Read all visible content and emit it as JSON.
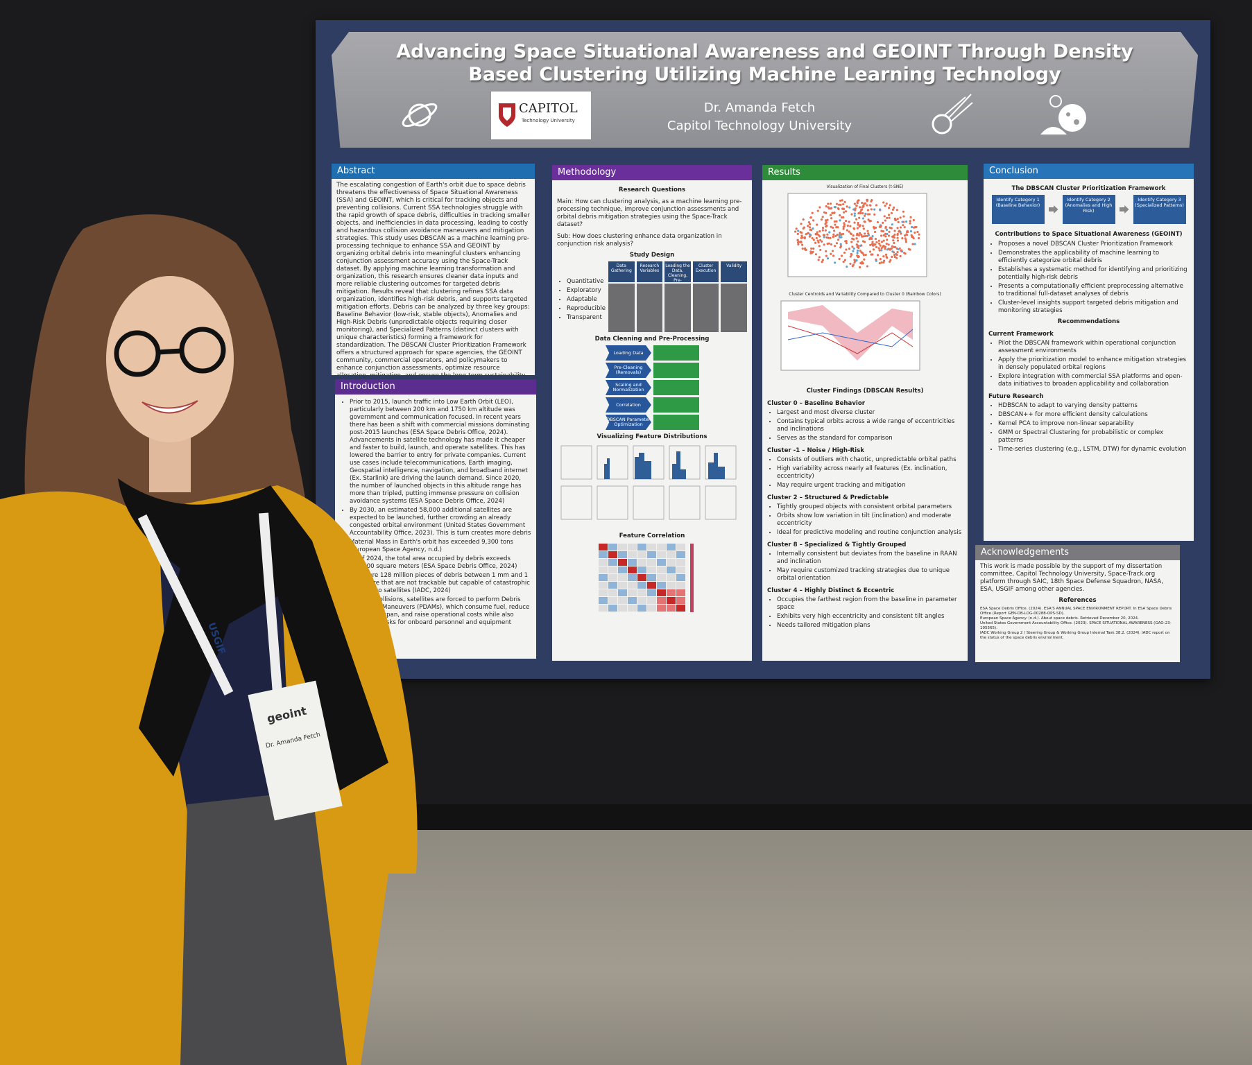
{
  "poster": {
    "title": "Advancing Space Situational Awareness and GEOINT Through Density Based Clustering Utilizing Machine Learning Technology",
    "author": "Dr. Amanda Fetch",
    "affiliation": "Capitol Technology University",
    "logo": {
      "name": "CAPITOL",
      "sub": "Technology University"
    },
    "abstract": {
      "heading": "Abstract",
      "text": "The escalating congestion of Earth's orbit due to space debris threatens the effectiveness of Space Situational Awareness (SSA) and GEOINT, which is critical for tracking objects and preventing collisions. Current SSA technologies struggle with the rapid growth of space debris, difficulties in tracking smaller objects, and inefficiencies in data processing, leading to costly and hazardous collision avoidance maneuvers and mitigation strategies. This study uses DBSCAN as a machine learning pre-processing technique to enhance SSA and GEOINT by organizing orbital debris into meaningful clusters enhancing conjunction assessment accuracy using the Space-Track dataset. By applying machine learning transformation and organization, this research ensures cleaner data inputs and more reliable clustering outcomes for targeted debris mitigation. Results reveal that clustering refines SSA data organization, identifies high-risk debris, and supports targeted mitigation efforts. Debris can be analyzed by three key groups: Baseline Behavior (low-risk, stable objects), Anomalies and High-Risk Debris (unpredictable objects requiring closer monitoring), and Specialized Patterns (distinct clusters with unique characteristics) forming a framework for standardization. The DBSCAN Cluster Prioritization Framework offers a structured approach for space agencies, the GEOINT community, commercial operators, and policymakers to enhance conjunction assessments, optimize resource allocation, mitigation, and ensure the long-term sustainability of Earth's orbital environment."
    },
    "introduction": {
      "heading": "Introduction",
      "items": [
        "Prior to 2015, launch traffic into Low Earth Orbit (LEO), particularly between 200 km and 1750 km altitude was government and communication focused. In recent years there has been a shift with commercial missions dominating post-2015 launches (ESA Space Debris Office, 2024). Advancements in satellite technology has made it cheaper and faster to build, launch, and operate satellites. This has lowered the barrier to entry for private companies. Current use cases include telecommunications, Earth imaging, Geospatial intelligence, navigation, and broadband internet (Ex. Starlink) are driving the launch demand. Since 2020, the number of launched objects in this altitude range has more than tripled, putting immense pressure on collision avoidance systems (ESA Space Debris Office, 2024)",
        "By 2030, an estimated 58,000 additional satellites are expected to be launched, further crowding an already congested orbital environment (United States Government Accountability Office, 2023). This is turn creates more debris",
        "Material Mass in Earth's orbit has exceeded 9,300 tons (European Space Agency, n.d.)",
        "As of 2024, the total area occupied by debris exceeds 100,000 square meters (ESA Space Debris Office, 2024)",
        "There are 128 million pieces of debris between 1 mm and 1 cm in size that are not trackable but capable of catastrophic damage to satellites (IADC, 2024)",
        "To avoid collisions, satellites are forced to perform Debris Avoidance Maneuvers (PDAMs), which consume fuel, reduce mission lifespan, and raise operational costs while also increasing risks for onboard personnel and equipment"
      ]
    },
    "methodology": {
      "heading": "Methodology",
      "questions_title": "Research Questions",
      "main": "Main: How can clustering analysis, as a machine learning pre-processing technique, improve conjunction assessments and orbital debris mitigation strategies using the Space-Track dataset?",
      "sub": "Sub: How does clustering enhance data organization in conjunction risk analysis?",
      "design_title": "Study Design",
      "design_items": [
        "Quantitative",
        "Exploratory",
        "Adaptable",
        "Reproducible",
        "Transparent"
      ],
      "table_headers": [
        "Data Gathering",
        "Research Variables",
        "Leading the Data, Cleaning, Pre-Processing",
        "Cluster Execution",
        "Validity"
      ],
      "cleaning_title": "Data Cleaning and Pre-Processing",
      "steps": [
        "Loading Data",
        "Pre-Cleaning (Removals)",
        "Scaling and Normalization",
        "Correlation",
        "DBSCAN Parameter Optimization"
      ],
      "distributions_title": "Visualizing Feature Distributions",
      "correlation_title": "Feature Correlation"
    },
    "results": {
      "heading": "Results",
      "plot1_title": "Visualization of Final Clusters (t-SNE)",
      "plot2_title": "Cluster Centroids and Variability Compared to Cluster 0 (Rainbow Colors)",
      "findings_title": "Cluster Findings (DBSCAN Results)",
      "clusters": [
        {
          "name": "Cluster 0 – Baseline Behavior",
          "items": [
            "Largest and most diverse cluster",
            "Contains typical orbits across a wide range of eccentricities and inclinations",
            "Serves as the standard for comparison"
          ]
        },
        {
          "name": "Cluster -1 – Noise / High-Risk",
          "items": [
            "Consists of outliers with chaotic, unpredictable orbital paths",
            "High variability across nearly all features (Ex. inclination, eccentricity)",
            "May require urgent tracking and mitigation"
          ]
        },
        {
          "name": "Cluster 2 – Structured & Predictable",
          "items": [
            "Tightly grouped objects with consistent orbital parameters",
            "Orbits show low variation in tilt (inclination) and moderate eccentricity",
            "Ideal for predictive modeling and routine conjunction analysis"
          ]
        },
        {
          "name": "Cluster 8 – Specialized & Tightly Grouped",
          "items": [
            "Internally consistent but deviates from the baseline in RAAN and inclination",
            "May require customized tracking strategies due to unique orbital orientation"
          ]
        },
        {
          "name": "Cluster 4 – Highly Distinct & Eccentric",
          "items": [
            "Occupies the farthest region from the baseline in parameter space",
            "Exhibits very high eccentricity and consistent tilt angles",
            "Needs tailored mitigation plans"
          ]
        }
      ]
    },
    "conclusion": {
      "heading": "Conclusion",
      "framework_title": "The DBSCAN Cluster Prioritization Framework",
      "framework_boxes": [
        "Identify Category 1 (Baseline Behavior)",
        "Identify Category 2 (Anomalies and High Risk)",
        "Identify Category 3 (Specialized Patterns)"
      ],
      "contrib_title": "Contributions to Space Situational Awareness (GEOINT)",
      "contributions": [
        "Proposes a novel DBSCAN Cluster Prioritization Framework",
        "Demonstrates the applicability of machine learning to efficiently categorize orbital debris",
        "Establishes a systematic method for identifying and prioritizing potentially high-risk debris",
        "Presents a computationally efficient preprocessing alternative to traditional full-dataset analyses of debris",
        "Cluster-level insights support targeted debris mitigation and monitoring strategies"
      ],
      "rec_title": "Recommendations",
      "current_title": "Current Framework",
      "current": [
        "Pilot the DBSCAN framework within operational conjunction assessment environments",
        "Apply the prioritization model to enhance mitigation strategies in densely populated orbital regions",
        "Explore integration with commercial SSA platforms and open-data initiatives to broaden applicability and collaboration"
      ],
      "future_title": "Future Research",
      "future": [
        "HDBSCAN to adapt to varying density patterns",
        "DBSCAN++ for more efficient density calculations",
        "Kernel PCA to improve non-linear separability",
        "GMM or Spectral Clustering for probabilistic or complex patterns",
        "Time-series clustering (e.g., LSTM, DTW) for dynamic evolution"
      ]
    },
    "acknowledgements": {
      "heading": "Acknowledgements",
      "text": "This work is made possible by the support of my dissertation committee, Capitol Technology University, Space-Track.org platform through SAIC, 18th Space Defense Squadron, NASA, ESA, USGIF among other agencies.",
      "references_title": "References",
      "references": [
        "ESA Space Debris Office. (2024). ESA'S ANNUAL SPACE ENVIRONMENT REPORT. In ESA Space Debris Office (Report GEN-DB-LOG-00288-OPS-SD).",
        "European Space Agency. (n.d.). About space debris. Retrieved December 20, 2024.",
        "United States Government Accountability Office. (2023). SPACE SITUATIONAL AWARENESS (GAO-23-105565).",
        "IADC Working Group 2 / Steering Group & Working Group Internal Task 38.2. (2024). IADC report on the status of the space debris environment."
      ]
    }
  },
  "badge": {
    "event": "geoint",
    "org": "USGIF",
    "name": "Dr. Amanda Fetch"
  }
}
